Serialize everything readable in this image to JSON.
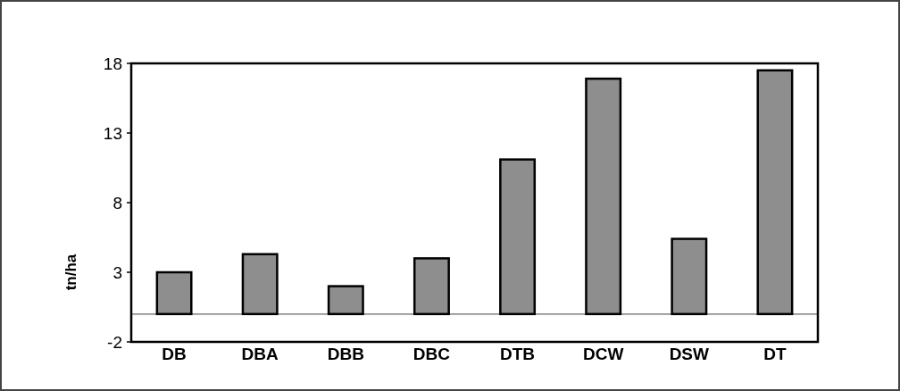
{
  "chart_data": {
    "type": "bar",
    "ylabel": "tn/ha",
    "categories": [
      "DB",
      "DBA",
      "DBB",
      "DBC",
      "DTB",
      "DCW",
      "DSW",
      "DT"
    ],
    "values": [
      3.0,
      4.3,
      2.0,
      4.0,
      11.1,
      16.9,
      5.4,
      17.5
    ],
    "color": "#8e8e8e",
    "ylim": [
      -2,
      18
    ],
    "yticks": [
      -2,
      3,
      8,
      13,
      18
    ],
    "grid": false,
    "ref_lines": [
      {
        "axis": "y",
        "value": 0,
        "color": "#666666"
      }
    ]
  }
}
